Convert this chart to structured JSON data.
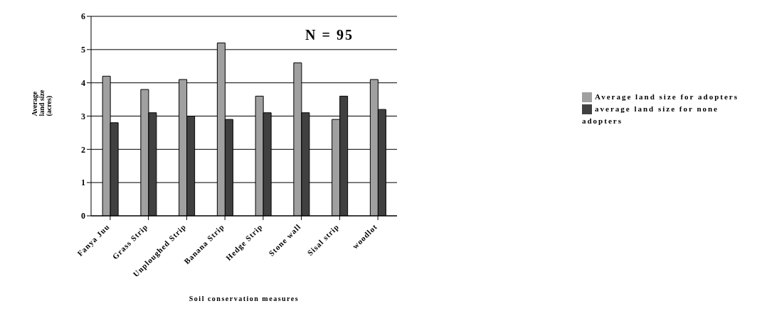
{
  "chart_data": {
    "type": "bar",
    "xlabel": "Soil conservation measures",
    "ylabel": "Average land size (acres)",
    "categories": [
      "Fanya Juu",
      "Grass Strip",
      "Unploughed Strip",
      "Banana Strip",
      "Hedge Strip",
      "Stone wall",
      "Sisal strip",
      "woodlot"
    ],
    "series": [
      {
        "name": "Average land size for adopters",
        "color": "#a0a0a0",
        "values": [
          4.2,
          3.8,
          4.1,
          5.2,
          3.6,
          4.6,
          2.9,
          4.1
        ]
      },
      {
        "name": "average land size for none adopters",
        "color": "#404040",
        "values": [
          2.8,
          3.1,
          3.0,
          2.9,
          3.1,
          3.1,
          3.6,
          3.2
        ]
      }
    ],
    "ylim": [
      0,
      6
    ],
    "yticks": [
      0,
      1,
      2,
      3,
      4,
      5,
      6
    ],
    "grid": "y",
    "legend": "right",
    "annotations": [
      "N = 95"
    ]
  }
}
